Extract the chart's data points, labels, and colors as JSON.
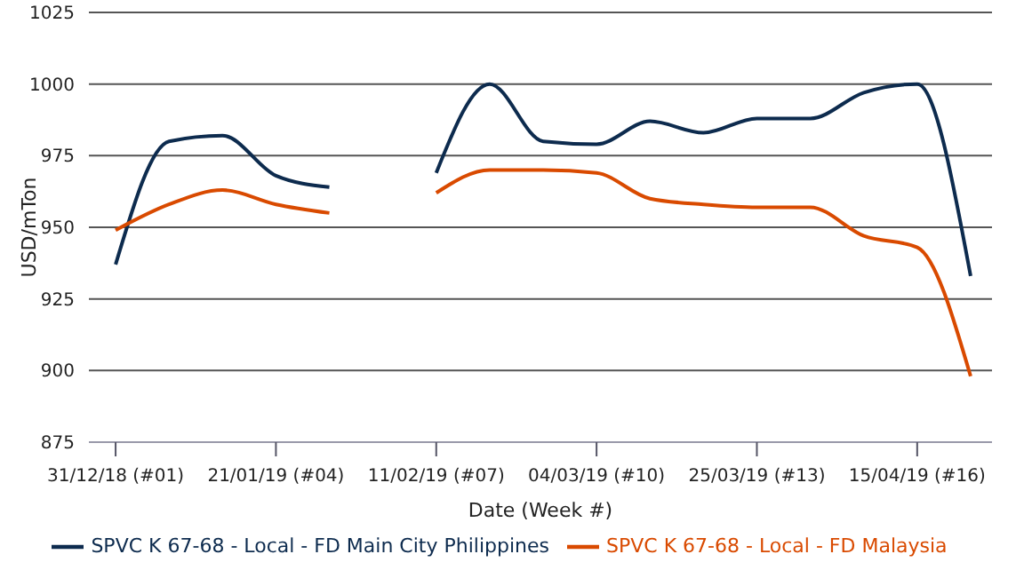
{
  "chart_data": {
    "type": "line",
    "xlabel": "Date (Week #)",
    "ylabel": "USD/mTon",
    "categories": [
      "31/12/18 (#01)",
      null,
      null,
      "21/01/19 (#04)",
      null,
      null,
      "11/02/19 (#07)",
      null,
      null,
      "04/03/19 (#10)",
      null,
      null,
      "25/03/19 (#13)",
      null,
      null,
      "15/04/19 (#16)",
      null
    ],
    "series": [
      {
        "name": "SPVC K 67-68 - Local - FD Main City Philippines",
        "color": "#0d2b4e",
        "values": [
          937,
          980,
          982,
          968,
          964,
          null,
          969,
          1000,
          980,
          979,
          987,
          983,
          988,
          988,
          997,
          1000,
          933
        ]
      },
      {
        "name": "SPVC K 67-68 - Local - FD Malaysia",
        "color": "#d94a00",
        "values": [
          949,
          958,
          963,
          958,
          955,
          null,
          962,
          970,
          970,
          969,
          960,
          958,
          957,
          957,
          947,
          943,
          898
        ]
      }
    ],
    "ylim": [
      875,
      1025
    ],
    "yticks": [
      875,
      900,
      925,
      950,
      975,
      1000,
      1025
    ],
    "grid": "y",
    "legend": "bottom",
    "marker": "none",
    "line_style": "solid"
  }
}
